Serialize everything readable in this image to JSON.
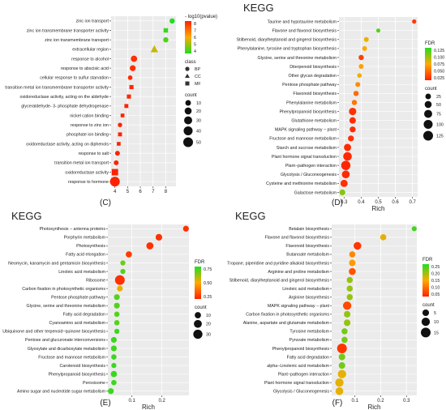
{
  "figure": {
    "panel_labels": [
      "(C)",
      "(D)",
      "(E)",
      "(F)"
    ]
  },
  "chart_data": [
    {
      "panel": "(C)",
      "type": "scatter",
      "title": "",
      "xlabel": "",
      "ylabel": "",
      "xlim": [
        3.7,
        8.8
      ],
      "xticks": [
        4,
        5,
        6,
        7,
        8
      ],
      "categories": [
        "zinc ion transport",
        "zinc ion transmembrane transporter activity",
        "zinc ion transmembrane transport",
        "extracellular region",
        "response to alcohol",
        "response to abscisic acid",
        "cellular response to sulfur starvation",
        "transition metal ion transmembrane transporter activity",
        "oxidoreductase activity, acting on the aldehyde",
        "glyceraldehyde- 3- phosphate dehydrogenase",
        "nickel cation binding",
        "response to zinc ion",
        "phosphate ion binding",
        "oxidoreductase activity, acting on diphenols",
        "response to salt",
        "transition metal ion transport",
        "oxidoreductase activity",
        "response to hormone"
      ],
      "x": [
        8.5,
        8.0,
        8.0,
        7.1,
        5.5,
        5.4,
        5.2,
        5.3,
        5.1,
        4.9,
        4.6,
        4.4,
        4.4,
        4.3,
        4.2,
        4.1,
        4.0,
        4.0
      ],
      "class": [
        "BP",
        "MF",
        "BP",
        "CC",
        "BP",
        "BP",
        "BP",
        "MF",
        "MF",
        "MF",
        "MF",
        "BP",
        "MF",
        "MF",
        "BP",
        "BP",
        "MF",
        "BP"
      ],
      "count": [
        8,
        8,
        8,
        25,
        15,
        12,
        5,
        6,
        6,
        5,
        4,
        4,
        5,
        4,
        6,
        6,
        25,
        50
      ],
      "color_value": [
        8,
        7.8,
        7.6,
        6.5,
        4.2,
        4.2,
        4.1,
        4.1,
        4.1,
        4.0,
        4.0,
        4.0,
        4.0,
        4.0,
        4.0,
        4.0,
        4.0,
        3.9
      ],
      "color_legend": {
        "title": "- log10(pvalue)",
        "ticks": [
          "8",
          "7",
          "6",
          "5",
          "4"
        ],
        "range": [
          4,
          8
        ],
        "low_color": "#22dd22",
        "high_color": "#ff2200"
      },
      "shape_legend": {
        "title": "class",
        "items": [
          "BP",
          "CC",
          "MF"
        ]
      },
      "size_legend": {
        "title": "count",
        "ticks": [
          "10",
          "20",
          "30",
          "40",
          "50"
        ],
        "values": [
          10,
          20,
          30,
          40,
          50
        ],
        "max": 50
      }
    },
    {
      "panel": "(D)",
      "type": "scatter",
      "title": "KEGG",
      "xlabel": "Rich",
      "ylabel": "",
      "xlim": [
        0.27,
        0.73
      ],
      "xticks": [
        0.3,
        0.4,
        0.5,
        0.6,
        0.7
      ],
      "xtick_labels": [
        "0.3",
        "0.4",
        "0.5",
        "0.6",
        "0.7"
      ],
      "categories": [
        "Taurine and hypotaurine metabolism",
        "Flavone and flavonol biosynthesis",
        "Stilbenoid, diarylheptanoid and gingerol biosynthesis",
        "Phenylalanine, tyrosine and tryptophan biosynthesis",
        "Glycine, serine and threonine metabolism",
        "Diterpenoid biosynthesis",
        "Other glycan degradation",
        "Pentose phosphate pathway",
        "Flavonoid biosynthesis",
        "Phenylalanine metabolism",
        "Phenylpropanoid biosynthesis",
        "Glutathione metabolism",
        "MAPK signaling pathway − plant",
        "Fructose and mannose metabolism",
        "Starch and sucrose metabolism",
        "Plant hormone signal transduction",
        "Plant−pathogen interaction",
        "Glycolysis / Gluconeogenesis",
        "Cysteine and methionine metabolism",
        "Galactose metabolism"
      ],
      "x": [
        0.71,
        0.5,
        0.43,
        0.42,
        0.4,
        0.4,
        0.39,
        0.38,
        0.37,
        0.36,
        0.35,
        0.35,
        0.35,
        0.34,
        0.32,
        0.32,
        0.31,
        0.31,
        0.3,
        0.29
      ],
      "count": [
        10,
        8,
        15,
        15,
        20,
        15,
        12,
        15,
        20,
        20,
        60,
        40,
        30,
        30,
        55,
        90,
        110,
        70,
        55,
        30
      ],
      "color_value": [
        0.012,
        0.115,
        0.07,
        0.065,
        0.015,
        0.06,
        0.07,
        0.05,
        0.035,
        0.04,
        0.008,
        0.005,
        0.005,
        0.006,
        0.003,
        0.003,
        0.002,
        0.004,
        0.006,
        0.1
      ],
      "color_legend": {
        "title": "FDR",
        "ticks": [
          "0.125",
          "0.100",
          "0.075",
          "0.050",
          "0.025"
        ],
        "range": [
          0,
          0.13
        ],
        "low_color": "#ff2200",
        "high_color": "#22dd22"
      },
      "size_legend": {
        "title": "count",
        "ticks": [
          "25",
          "50",
          "75",
          "100",
          "125"
        ],
        "values": [
          25,
          50,
          75,
          100,
          125
        ],
        "max": 125
      }
    },
    {
      "panel": "(E)",
      "type": "scatter",
      "title": "KEGG",
      "xlabel": "Rich",
      "ylabel": "",
      "xlim": [
        0.02,
        0.29
      ],
      "xticks": [
        0.1,
        0.2
      ],
      "xtick_labels": [
        "0.1",
        "0.2"
      ],
      "categories": [
        "Photosynthesis − antenna proteins",
        "Porphyrin metabolism",
        "Photosynthesis",
        "Fatty acid elongation",
        "Neomycin, kanamycin and gentamicin biosynthesis",
        "Linoleic acid metabolism",
        "Ribosome",
        "Carbon fixation in photosynthetic organisms",
        "Pentose phosphate pathway",
        "Glycine, serine and threonine metabolism",
        "Fatty acid degradation",
        "Cyanoamino acid metabolism",
        "Ubiquinone and other terpenoid−quinone biosynthesis",
        "Pentose and glucuronate interconversions",
        "Glyoxylate and dicarboxylate metabolism",
        "Fructose and mannose metabolism",
        "Carotenoid biosynthesis",
        "Phenylpropanoid biosynthesis",
        "Peroxisome",
        "Amino sugar and nucleotide sugar metabolism"
      ],
      "x": [
        0.28,
        0.19,
        0.16,
        0.09,
        0.07,
        0.07,
        0.06,
        0.06,
        0.05,
        0.05,
        0.05,
        0.05,
        0.05,
        0.04,
        0.04,
        0.04,
        0.04,
        0.04,
        0.04,
        0.03
      ],
      "count": [
        8,
        12,
        15,
        10,
        5,
        5,
        35,
        8,
        8,
        8,
        6,
        6,
        5,
        8,
        8,
        6,
        5,
        10,
        6,
        8
      ],
      "color_value": [
        0.05,
        0.05,
        0.05,
        0.08,
        0.75,
        0.8,
        0.05,
        0.5,
        0.8,
        0.8,
        0.8,
        0.8,
        0.85,
        0.85,
        0.85,
        0.85,
        0.85,
        0.85,
        0.85,
        0.85
      ],
      "color_legend": {
        "title": "FDR",
        "ticks": [
          "0.75",
          "0.50",
          "0.25"
        ],
        "range": [
          0,
          0.9
        ],
        "low_color": "#ff2200",
        "high_color": "#22dd22"
      },
      "size_legend": {
        "title": "count",
        "ticks": [
          "10",
          "20",
          "30"
        ],
        "values": [
          10,
          20,
          30
        ],
        "max": 35
      }
    },
    {
      "panel": "(F)",
      "type": "scatter",
      "title": "KEGG",
      "xlabel": "Rich",
      "ylabel": "",
      "xlim": [
        0.01,
        0.34
      ],
      "xticks": [
        0.1,
        0.2,
        0.3
      ],
      "xtick_labels": [
        "0.1",
        "0.2",
        "0.3"
      ],
      "categories": [
        "Betalain biosynthesis",
        "Flavone and flavonol biosynthesis",
        "Flavonoid biosynthesis",
        "Butanoate metabolism",
        "Tropane, piperidine and pyridine alkaloid biosynthesis",
        "Arginine and proline metabolism",
        "Stilbenoid, diarylheptanoid and gingerol biosynthesis",
        "Linoleic acid metabolism",
        "Arginine biosynthesis",
        "MAPK signaling pathway − plant",
        "Carbon fixation in photosynthetic organisms",
        "Alanine, aspartate and glutamate metabolism",
        "Tyrosine metabolism",
        "Pyruvate metabolism",
        "Phenylpropanoid biosynthesis",
        "Fatty acid degradation",
        "alpha−Linolenic acid metabolism",
        "Plant−pathogen interaction",
        "Plant hormone signal transduction",
        "Glycolysis / Gluconeogenesis"
      ],
      "x": [
        0.33,
        0.21,
        0.11,
        0.09,
        0.09,
        0.09,
        0.08,
        0.08,
        0.08,
        0.07,
        0.07,
        0.07,
        0.06,
        0.06,
        0.05,
        0.05,
        0.05,
        0.05,
        0.04,
        0.04
      ],
      "count": [
        2,
        4,
        8,
        4,
        5,
        6,
        4,
        4,
        4,
        10,
        5,
        5,
        4,
        4,
        15,
        5,
        5,
        10,
        10,
        8
      ],
      "color_value": [
        0.25,
        0.15,
        0.02,
        0.1,
        0.12,
        0.05,
        0.2,
        0.2,
        0.2,
        0.04,
        0.2,
        0.2,
        0.22,
        0.22,
        0.02,
        0.22,
        0.22,
        0.15,
        0.15,
        0.15
      ],
      "color_legend": {
        "title": "FDR",
        "ticks": [
          "0.25",
          "0.20",
          "0.15",
          "0.10",
          "0.05"
        ],
        "range": [
          0,
          0.27
        ],
        "low_color": "#ff2200",
        "high_color": "#22dd22"
      },
      "size_legend": {
        "title": "count",
        "ticks": [
          "5",
          "10",
          "15"
        ],
        "values": [
          5,
          10,
          15
        ],
        "max": 15
      }
    }
  ]
}
